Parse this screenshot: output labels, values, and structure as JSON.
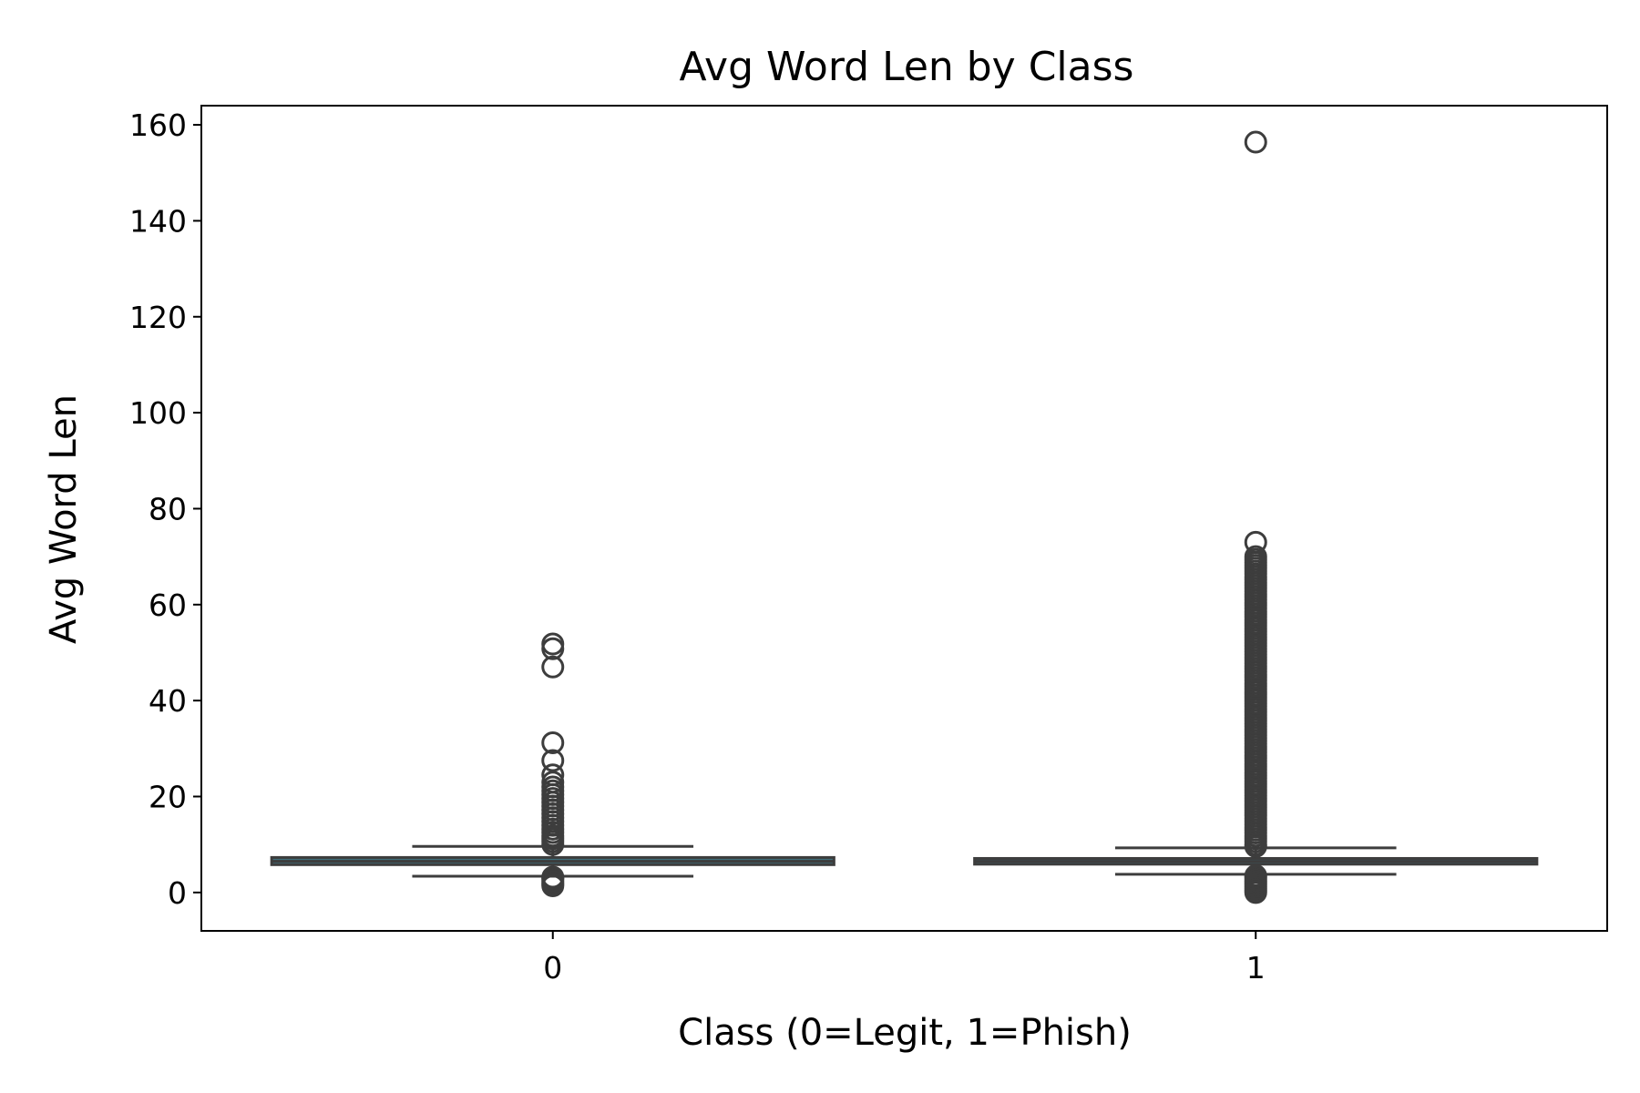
{
  "chart_data": {
    "type": "box",
    "title": "Avg Word Len by Class",
    "xlabel": "Class (0=Legit, 1=Phish)",
    "ylabel": "Avg Word Len",
    "categories": [
      "0",
      "1"
    ],
    "ylim": [
      -8,
      164
    ],
    "yticks": [
      0,
      20,
      40,
      60,
      80,
      100,
      120,
      140,
      160
    ],
    "grid": false,
    "box_color": "#3f6e7a",
    "line_color": "#3d3d3d",
    "boxes": [
      {
        "category": "0",
        "whisker_low": 3.4,
        "q1": 5.8,
        "median": 6.5,
        "q3": 7.3,
        "whisker_high": 9.6,
        "outliers": [
          1.4,
          1.7,
          2.0,
          2.4,
          2.8,
          3.0,
          3.2,
          10.0,
          10.6,
          11.2,
          11.8,
          12.5,
          13.2,
          14.0,
          14.8,
          15.6,
          16.4,
          17.2,
          18.0,
          18.8,
          19.6,
          20.4,
          21.2,
          22.0,
          23.0,
          24.5,
          27.5,
          31.2,
          47.0,
          50.8,
          51.8
        ]
      },
      {
        "category": "1",
        "whisker_low": 3.8,
        "q1": 5.9,
        "median": 6.5,
        "q3": 7.1,
        "whisker_high": 9.3,
        "outliers": [
          0.0,
          0.4,
          0.8,
          1.2,
          1.6,
          2.0,
          2.4,
          2.8,
          3.2,
          3.5,
          9.6,
          10.0,
          10.6,
          11.2,
          11.8,
          12.4,
          13.0,
          13.6,
          14.2,
          14.8,
          15.4,
          16.0,
          16.6,
          17.2,
          17.8,
          18.4,
          19.0,
          19.6,
          20.2,
          20.8,
          21.4,
          22.0,
          22.6,
          23.2,
          23.8,
          24.4,
          25.0,
          25.6,
          26.2,
          26.8,
          27.4,
          28.0,
          28.6,
          29.2,
          29.8,
          30.4,
          31.0,
          31.6,
          32.2,
          32.8,
          33.4,
          34.0,
          34.6,
          35.2,
          35.8,
          36.4,
          37.0,
          37.6,
          38.2,
          38.8,
          39.4,
          40.0,
          40.6,
          41.2,
          41.8,
          42.4,
          43.0,
          43.6,
          44.2,
          44.8,
          45.4,
          46.0,
          46.6,
          47.2,
          47.8,
          48.4,
          49.0,
          49.6,
          50.2,
          50.8,
          51.4,
          52.0,
          52.6,
          53.2,
          53.8,
          54.4,
          55.0,
          55.6,
          56.2,
          56.8,
          57.4,
          58.0,
          58.6,
          59.2,
          59.8,
          60.4,
          61.0,
          61.6,
          62.2,
          62.8,
          63.4,
          64.0,
          64.6,
          65.2,
          65.8,
          66.4,
          67.0,
          67.6,
          68.2,
          68.8,
          69.4,
          70.0,
          73.0,
          156.4
        ]
      }
    ]
  }
}
